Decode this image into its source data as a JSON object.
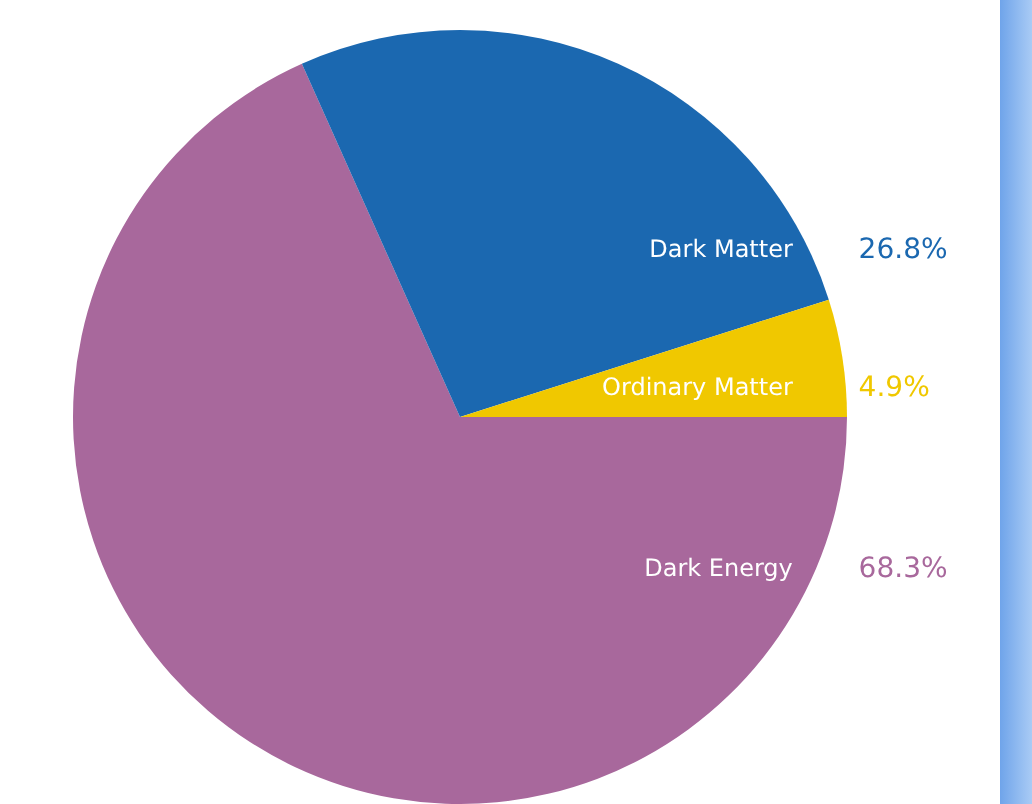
{
  "chart_data": {
    "type": "pie",
    "categories": [
      "Dark Energy",
      "Dark Matter",
      "Ordinary Matter"
    ],
    "values": [
      68.3,
      26.8,
      4.9
    ],
    "colors": [
      "#a8689c",
      "#1b68b0",
      "#f0c800"
    ],
    "value_labels": [
      "68.3%",
      "26.8%",
      "4.9%"
    ],
    "legend": false
  }
}
